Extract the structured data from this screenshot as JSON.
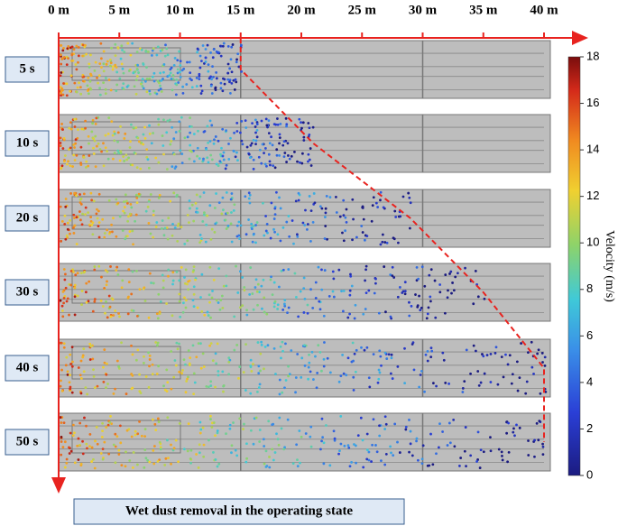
{
  "chart_data": {
    "type": "particle-field",
    "caption": "Wet dust removal in the operating state",
    "xlim": [
      0,
      40
    ],
    "xticks": [
      {
        "value": 0,
        "label": "0 m"
      },
      {
        "value": 5,
        "label": "5 m"
      },
      {
        "value": 10,
        "label": "10 m"
      },
      {
        "value": 15,
        "label": "15 m"
      },
      {
        "value": 20,
        "label": "20 m"
      },
      {
        "value": 25,
        "label": "25 m"
      },
      {
        "value": 30,
        "label": "30 m"
      },
      {
        "value": 35,
        "label": "35 m"
      },
      {
        "value": 40,
        "label": "40 m"
      }
    ],
    "categories": [
      "5 s",
      "10 s",
      "20 s",
      "30 s",
      "40 s",
      "50 s"
    ],
    "values": [
      15,
      21,
      29,
      35,
      40,
      40
    ],
    "front_color": "#e8231f",
    "colorbar_label": "Velocity (m/s)",
    "clim": [
      0,
      18
    ],
    "cticks": [
      0,
      2,
      4,
      6,
      8,
      10,
      12,
      14,
      16,
      18
    ]
  }
}
